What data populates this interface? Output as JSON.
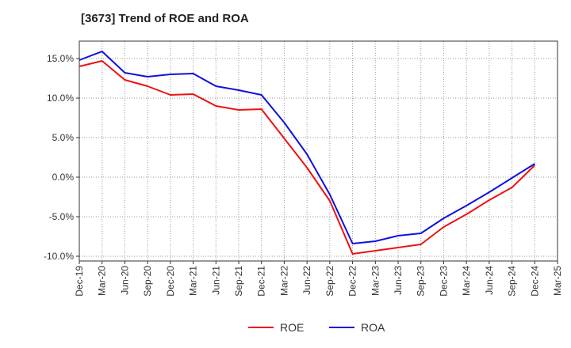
{
  "chart_data": {
    "type": "line",
    "title": "[3673]  Trend of ROE and ROA",
    "xlabel": "",
    "ylabel": "",
    "x": [
      "Dec-19",
      "Mar-20",
      "Jun-20",
      "Sep-20",
      "Dec-20",
      "Mar-21",
      "Jun-21",
      "Sep-21",
      "Dec-21",
      "Mar-22",
      "Jun-22",
      "Sep-22",
      "Dec-22",
      "Mar-23",
      "Jun-23",
      "Sep-23",
      "Dec-23",
      "Mar-24",
      "Jun-24",
      "Sep-24",
      "Dec-24",
      "Mar-25"
    ],
    "ylim": [
      -10.6,
      17.2
    ],
    "yticks": [
      -10,
      -5,
      0,
      5,
      10,
      15
    ],
    "ytick_labels": [
      "-10.0%",
      "-5.0%",
      "0.0%",
      "5.0%",
      "10.0%",
      "15.0%"
    ],
    "grid": true,
    "legend_position": "bottom",
    "series": [
      {
        "name": "ROE",
        "color": "#ee1111",
        "values": [
          14.0,
          14.7,
          12.3,
          11.5,
          10.4,
          10.5,
          9.0,
          8.5,
          8.6,
          4.9,
          1.2,
          -3.0,
          -9.7,
          -9.3,
          -8.9,
          -8.5,
          -6.3,
          -4.7,
          -2.9,
          -1.3,
          1.5,
          null
        ]
      },
      {
        "name": "ROA",
        "color": "#1111dd",
        "values": [
          14.8,
          15.9,
          13.2,
          12.7,
          13.0,
          13.1,
          11.5,
          11.0,
          10.4,
          6.9,
          2.9,
          -2.2,
          -8.4,
          -8.1,
          -7.4,
          -7.1,
          -5.2,
          -3.6,
          -1.9,
          -0.1,
          1.7,
          null
        ]
      }
    ]
  }
}
